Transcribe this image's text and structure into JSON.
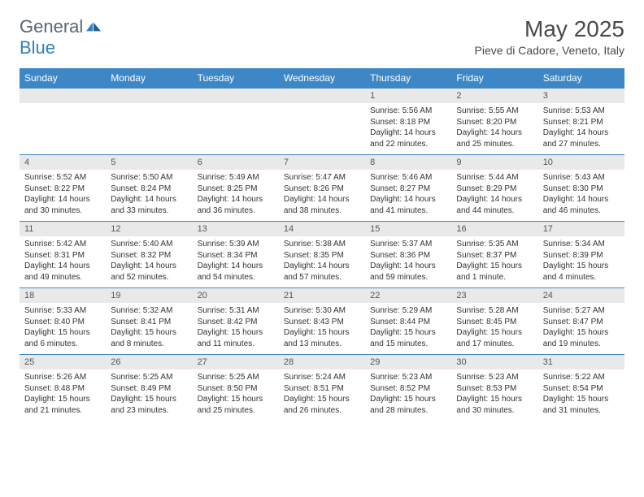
{
  "brand": {
    "text1": "General",
    "text2": "Blue"
  },
  "title": "May 2025",
  "location": "Pieve di Cadore, Veneto, Italy",
  "colors": {
    "header_bg": "#3d87c7",
    "header_fg": "#ffffff",
    "daynum_bg": "#e9e9e9",
    "border": "#3d87c7",
    "text": "#333333",
    "brand_gray": "#5a6670",
    "brand_blue": "#2f7fc2"
  },
  "dayNames": [
    "Sunday",
    "Monday",
    "Tuesday",
    "Wednesday",
    "Thursday",
    "Friday",
    "Saturday"
  ],
  "weeks": [
    [
      null,
      null,
      null,
      null,
      {
        "n": "1",
        "sr": "5:56 AM",
        "ss": "8:18 PM",
        "dl": "14 hours and 22 minutes."
      },
      {
        "n": "2",
        "sr": "5:55 AM",
        "ss": "8:20 PM",
        "dl": "14 hours and 25 minutes."
      },
      {
        "n": "3",
        "sr": "5:53 AM",
        "ss": "8:21 PM",
        "dl": "14 hours and 27 minutes."
      }
    ],
    [
      {
        "n": "4",
        "sr": "5:52 AM",
        "ss": "8:22 PM",
        "dl": "14 hours and 30 minutes."
      },
      {
        "n": "5",
        "sr": "5:50 AM",
        "ss": "8:24 PM",
        "dl": "14 hours and 33 minutes."
      },
      {
        "n": "6",
        "sr": "5:49 AM",
        "ss": "8:25 PM",
        "dl": "14 hours and 36 minutes."
      },
      {
        "n": "7",
        "sr": "5:47 AM",
        "ss": "8:26 PM",
        "dl": "14 hours and 38 minutes."
      },
      {
        "n": "8",
        "sr": "5:46 AM",
        "ss": "8:27 PM",
        "dl": "14 hours and 41 minutes."
      },
      {
        "n": "9",
        "sr": "5:44 AM",
        "ss": "8:29 PM",
        "dl": "14 hours and 44 minutes."
      },
      {
        "n": "10",
        "sr": "5:43 AM",
        "ss": "8:30 PM",
        "dl": "14 hours and 46 minutes."
      }
    ],
    [
      {
        "n": "11",
        "sr": "5:42 AM",
        "ss": "8:31 PM",
        "dl": "14 hours and 49 minutes."
      },
      {
        "n": "12",
        "sr": "5:40 AM",
        "ss": "8:32 PM",
        "dl": "14 hours and 52 minutes."
      },
      {
        "n": "13",
        "sr": "5:39 AM",
        "ss": "8:34 PM",
        "dl": "14 hours and 54 minutes."
      },
      {
        "n": "14",
        "sr": "5:38 AM",
        "ss": "8:35 PM",
        "dl": "14 hours and 57 minutes."
      },
      {
        "n": "15",
        "sr": "5:37 AM",
        "ss": "8:36 PM",
        "dl": "14 hours and 59 minutes."
      },
      {
        "n": "16",
        "sr": "5:35 AM",
        "ss": "8:37 PM",
        "dl": "15 hours and 1 minute."
      },
      {
        "n": "17",
        "sr": "5:34 AM",
        "ss": "8:39 PM",
        "dl": "15 hours and 4 minutes."
      }
    ],
    [
      {
        "n": "18",
        "sr": "5:33 AM",
        "ss": "8:40 PM",
        "dl": "15 hours and 6 minutes."
      },
      {
        "n": "19",
        "sr": "5:32 AM",
        "ss": "8:41 PM",
        "dl": "15 hours and 8 minutes."
      },
      {
        "n": "20",
        "sr": "5:31 AM",
        "ss": "8:42 PM",
        "dl": "15 hours and 11 minutes."
      },
      {
        "n": "21",
        "sr": "5:30 AM",
        "ss": "8:43 PM",
        "dl": "15 hours and 13 minutes."
      },
      {
        "n": "22",
        "sr": "5:29 AM",
        "ss": "8:44 PM",
        "dl": "15 hours and 15 minutes."
      },
      {
        "n": "23",
        "sr": "5:28 AM",
        "ss": "8:45 PM",
        "dl": "15 hours and 17 minutes."
      },
      {
        "n": "24",
        "sr": "5:27 AM",
        "ss": "8:47 PM",
        "dl": "15 hours and 19 minutes."
      }
    ],
    [
      {
        "n": "25",
        "sr": "5:26 AM",
        "ss": "8:48 PM",
        "dl": "15 hours and 21 minutes."
      },
      {
        "n": "26",
        "sr": "5:25 AM",
        "ss": "8:49 PM",
        "dl": "15 hours and 23 minutes."
      },
      {
        "n": "27",
        "sr": "5:25 AM",
        "ss": "8:50 PM",
        "dl": "15 hours and 25 minutes."
      },
      {
        "n": "28",
        "sr": "5:24 AM",
        "ss": "8:51 PM",
        "dl": "15 hours and 26 minutes."
      },
      {
        "n": "29",
        "sr": "5:23 AM",
        "ss": "8:52 PM",
        "dl": "15 hours and 28 minutes."
      },
      {
        "n": "30",
        "sr": "5:23 AM",
        "ss": "8:53 PM",
        "dl": "15 hours and 30 minutes."
      },
      {
        "n": "31",
        "sr": "5:22 AM",
        "ss": "8:54 PM",
        "dl": "15 hours and 31 minutes."
      }
    ]
  ],
  "labels": {
    "sunrise": "Sunrise:",
    "sunset": "Sunset:",
    "daylight": "Daylight:"
  }
}
